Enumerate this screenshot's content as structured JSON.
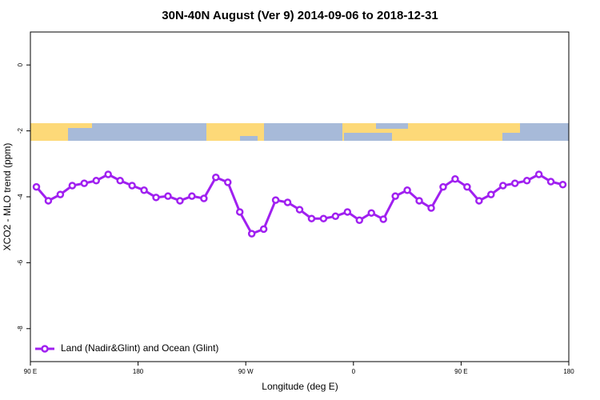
{
  "chart_data": {
    "type": "line",
    "title": "30N-40N August (Ver 9)   2014-09-06 to 2018-12-31",
    "x_label": "Longitude (deg E)",
    "y_label": "XCO2 - MLO trend (ppm)",
    "x": [
      95,
      105,
      115,
      125,
      135,
      145,
      155,
      165,
      175,
      185,
      195,
      205,
      215,
      225,
      235,
      245,
      255,
      265,
      275,
      285,
      295,
      305,
      315,
      325,
      335,
      345,
      355,
      365,
      375,
      385,
      395,
      405,
      415,
      425,
      435,
      445,
      455,
      465,
      475,
      485,
      495,
      505,
      515,
      525,
      535
    ],
    "series": [
      {
        "name": "Land (Nadir&Glint) and Ocean (Glint)",
        "color": "#a020f0",
        "values": [
          -3.7,
          -4.12,
          -3.93,
          -3.66,
          -3.59,
          -3.51,
          -3.32,
          -3.51,
          -3.66,
          -3.8,
          -4.02,
          -3.98,
          -4.12,
          -3.98,
          -4.05,
          -3.41,
          -3.56,
          -4.46,
          -5.12,
          -4.98,
          -4.1,
          -4.17,
          -4.39,
          -4.66,
          -4.66,
          -4.59,
          -4.46,
          -4.71,
          -4.49,
          -4.68,
          -3.98,
          -3.8,
          -4.12,
          -4.34,
          -3.7,
          -3.46,
          -3.7,
          -4.12,
          -3.93,
          -3.66,
          -3.59,
          -3.51,
          -3.32,
          -3.54,
          -3.63
        ]
      }
    ],
    "xlim": [
      90,
      540
    ],
    "xticks": [
      {
        "value": 90,
        "label": "90 E"
      },
      180,
      {
        "value": 270,
        "label": "90 W"
      },
      {
        "value": 360,
        "label": "0"
      },
      {
        "value": 450,
        "label": "90 E"
      },
      {
        "value": 540,
        "label": "180"
      }
    ],
    "ylim": [
      -9,
      1
    ],
    "yticks": [
      0,
      -2,
      -4,
      -6,
      -8
    ],
    "legend": "bottom-left"
  }
}
